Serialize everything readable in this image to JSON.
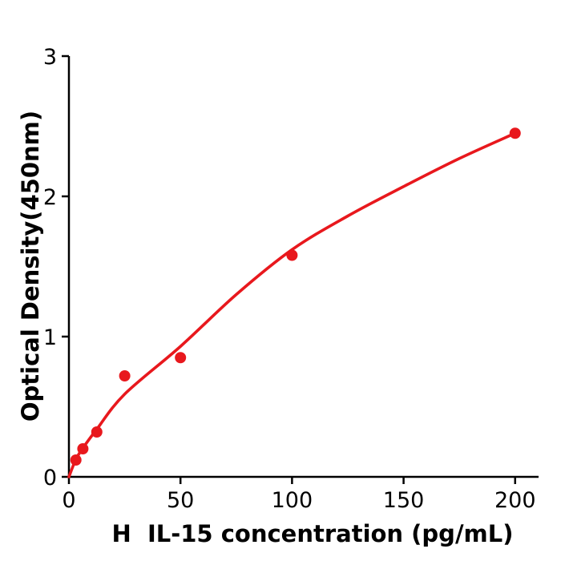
{
  "figure": {
    "background": "#ffffff",
    "axis_color": "#000000",
    "accent_color": "#e8181d"
  },
  "chart_data": {
    "type": "scatter",
    "title": "",
    "xlabel": "H  IL-15 concentration (pg/mL)",
    "ylabel": "Optical Density(450nm)",
    "xlim": [
      0,
      210.5
    ],
    "ylim": [
      0,
      3
    ],
    "grid": false,
    "legend_position": "none",
    "x_ticks": [
      {
        "label": "0",
        "value": 0
      },
      {
        "label": "50",
        "value": 50
      },
      {
        "label": "100",
        "value": 100
      },
      {
        "label": "150",
        "value": 150
      },
      {
        "label": "200",
        "value": 200
      }
    ],
    "y_ticks": [
      {
        "label": "0",
        "value": 0
      },
      {
        "label": "1",
        "value": 1
      },
      {
        "label": "2",
        "value": 2
      },
      {
        "label": "3",
        "value": 3
      }
    ],
    "series": [
      {
        "name": "standard-points",
        "type": "scatter",
        "marker": "circle",
        "color": "#e8181d",
        "x": [
          3.125,
          6.25,
          12.5,
          25,
          50,
          100,
          200
        ],
        "y": [
          0.12,
          0.2,
          0.32,
          0.72,
          0.85,
          1.58,
          2.45
        ]
      },
      {
        "name": "fit-curve",
        "type": "line",
        "color": "#e8181d",
        "x": [
          0,
          3.125,
          6.25,
          12.5,
          25,
          50,
          75,
          100,
          125,
          150,
          175,
          200
        ],
        "y": [
          0.0,
          0.125,
          0.205,
          0.34,
          0.59,
          0.93,
          1.3,
          1.62,
          1.86,
          2.07,
          2.27,
          2.45
        ]
      }
    ]
  }
}
